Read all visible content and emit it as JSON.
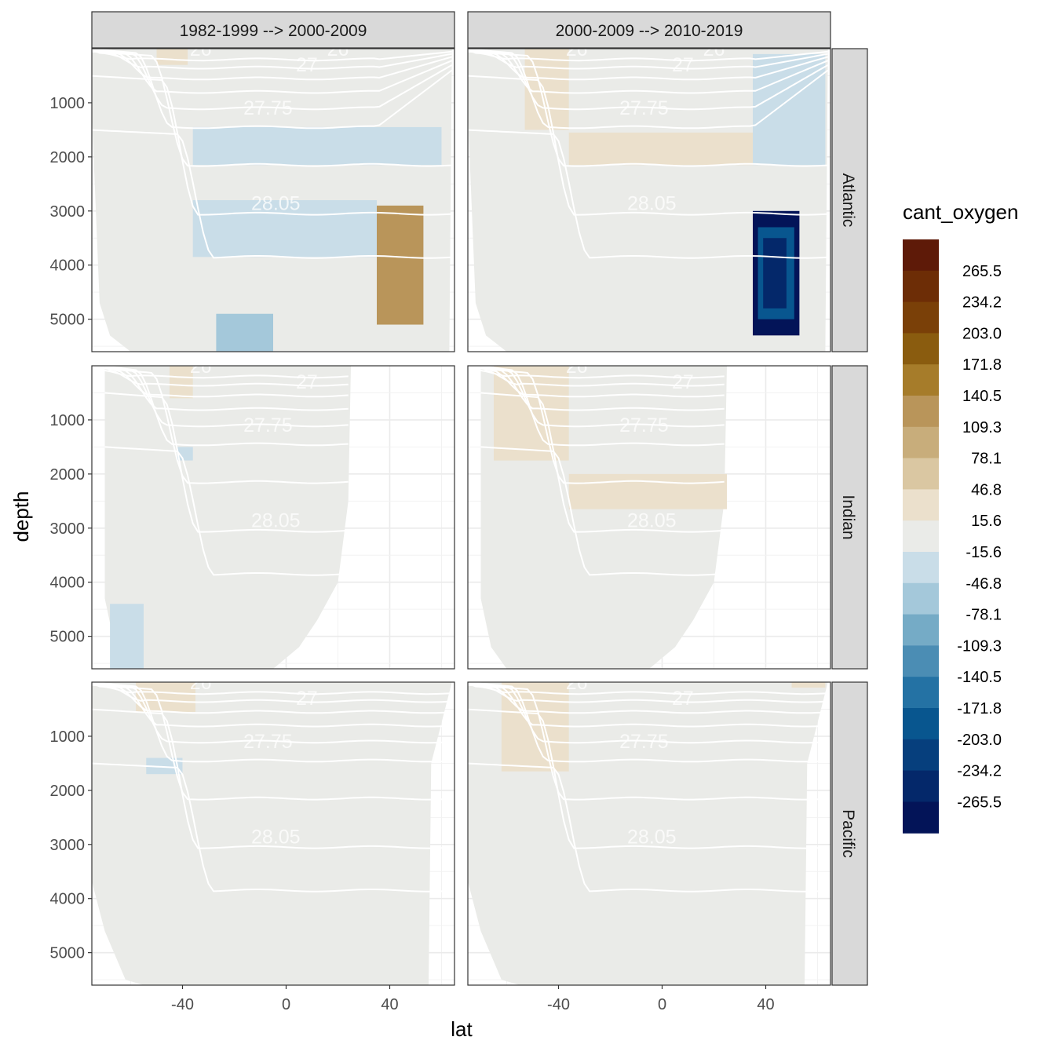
{
  "chart_data": {
    "type": "heatmap",
    "facet_columns": [
      "1982-1999 --> 2000-2009",
      "2000-2009 --> 2010-2019"
    ],
    "facet_rows": [
      "Atlantic",
      "Indian",
      "Pacific"
    ],
    "xlabel": "lat",
    "ylabel": "depth",
    "xlim": [
      -75,
      65
    ],
    "ylim": [
      5600,
      0
    ],
    "x_ticks": [
      -40,
      0,
      40
    ],
    "x_tick_labels": [
      "-40",
      "0",
      "40"
    ],
    "y_ticks": [
      1000,
      2000,
      3000,
      4000,
      5000
    ],
    "y_tick_labels": [
      "1000",
      "2000",
      "3000",
      "4000",
      "5000"
    ],
    "grid": true,
    "legend": {
      "title": "cant_oxygen",
      "position": "right",
      "breaks": [
        "265.5",
        "234.2",
        "203.0",
        "171.8",
        "140.5",
        "109.3",
        "78.1",
        "46.8",
        "15.6",
        "-15.6",
        "-46.8",
        "-78.1",
        "-109.3",
        "-140.5",
        "-171.8",
        "-203.0",
        "-234.2",
        "-265.5"
      ],
      "colors": [
        "#5e1a08",
        "#6d2d06",
        "#7a4008",
        "#8a5c0f",
        "#a67c2a",
        "#b9955a",
        "#c8ad7b",
        "#dac7a2",
        "#ebe0cc",
        "#eaebe8",
        "#c9dde8",
        "#a4c8da",
        "#75abc6",
        "#4b8db4",
        "#2472a4",
        "#08568f",
        "#063f7d",
        "#04286a",
        "#031458"
      ]
    },
    "isopycnal_labels": [
      "26",
      "27",
      "27.75",
      "28.05"
    ],
    "background_color": "#eaebe8",
    "contour_color": "#ffffff",
    "panels": [
      {
        "row": "Atlantic",
        "column": "1982-1999 --> 2000-2009",
        "contour_labels": [
          "26",
          "26",
          "27",
          "27.75",
          "28.05"
        ],
        "anomalies": [
          {
            "sign": "positive",
            "class": "15.6 to 46.8",
            "lat_range": [
              -50,
              -38
            ],
            "depth_range": [
              0,
              300
            ]
          },
          {
            "sign": "negative",
            "class": "-46.8 to -15.6",
            "lat_range": [
              -36,
              60
            ],
            "depth_range": [
              1450,
              2150
            ]
          },
          {
            "sign": "negative",
            "class": "-46.8 to -15.6",
            "lat_range": [
              -36,
              35
            ],
            "depth_range": [
              2800,
              3850
            ]
          },
          {
            "sign": "positive",
            "class": "78.1 to 109.3",
            "lat_range": [
              35,
              53
            ],
            "depth_range": [
              2900,
              5100
            ]
          },
          {
            "sign": "negative",
            "class": "-78.1 to -46.8",
            "lat_range": [
              -27,
              -5
            ],
            "depth_range": [
              4900,
              5600
            ]
          }
        ]
      },
      {
        "row": "Atlantic",
        "column": "2000-2009 --> 2010-2019",
        "contour_labels": [
          "26",
          "26",
          "27",
          "27.75",
          "28.05"
        ],
        "anomalies": [
          {
            "sign": "positive",
            "class": "15.6 to 46.8",
            "lat_range": [
              -53,
              -36
            ],
            "depth_range": [
              0,
              1500
            ]
          },
          {
            "sign": "positive",
            "class": "15.6 to 46.8",
            "lat_range": [
              -36,
              35
            ],
            "depth_range": [
              1550,
              2150
            ]
          },
          {
            "sign": "negative",
            "class": "-46.8 to -15.6",
            "lat_range": [
              35,
              63
            ],
            "depth_range": [
              100,
              2150
            ]
          },
          {
            "sign": "negative",
            "class": "below -265.5",
            "lat_range": [
              35,
              53
            ],
            "depth_range": [
              3000,
              5300
            ]
          }
        ]
      },
      {
        "row": "Indian",
        "column": "1982-1999 --> 2000-2009",
        "contour_labels": [
          "26",
          "27",
          "27.75",
          "28.05"
        ],
        "anomalies": [
          {
            "sign": "positive",
            "class": "15.6 to 46.8",
            "lat_range": [
              -45,
              -36
            ],
            "depth_range": [
              0,
              600
            ]
          },
          {
            "sign": "negative",
            "class": "-46.8 to -15.6",
            "lat_range": [
              -42,
              -36
            ],
            "depth_range": [
              1500,
              1750
            ]
          },
          {
            "sign": "negative",
            "class": "-46.8 to -15.6",
            "lat_range": [
              -68,
              -55
            ],
            "depth_range": [
              4400,
              5600
            ]
          }
        ]
      },
      {
        "row": "Indian",
        "column": "2000-2009 --> 2010-2019",
        "contour_labels": [
          "26",
          "27",
          "27.75",
          "28.05"
        ],
        "anomalies": [
          {
            "sign": "positive",
            "class": "15.6 to 46.8",
            "lat_range": [
              -65,
              -36
            ],
            "depth_range": [
              0,
              1750
            ]
          },
          {
            "sign": "positive",
            "class": "15.6 to 46.8",
            "lat_range": [
              -36,
              25
            ],
            "depth_range": [
              2000,
              2650
            ]
          }
        ]
      },
      {
        "row": "Pacific",
        "column": "1982-1999 --> 2000-2009",
        "contour_labels": [
          "26",
          "27",
          "27.75",
          "28.05"
        ],
        "anomalies": [
          {
            "sign": "positive",
            "class": "15.6 to 46.8",
            "lat_range": [
              -58,
              -35
            ],
            "depth_range": [
              0,
              550
            ]
          },
          {
            "sign": "negative",
            "class": "-46.8 to -15.6",
            "lat_range": [
              -54,
              -40
            ],
            "depth_range": [
              1400,
              1700
            ]
          }
        ]
      },
      {
        "row": "Pacific",
        "column": "2000-2009 --> 2010-2019",
        "contour_labels": [
          "26",
          "27",
          "27.75",
          "28.05"
        ],
        "anomalies": [
          {
            "sign": "positive",
            "class": "15.6 to 46.8",
            "lat_range": [
              -62,
              -36
            ],
            "depth_range": [
              0,
              1650
            ]
          },
          {
            "sign": "positive",
            "class": "15.6 to 46.8",
            "lat_range": [
              -50,
              -36
            ],
            "depth_range": [
              0,
              120
            ]
          },
          {
            "sign": "positive",
            "class": "15.6 to 46.8",
            "lat_range": [
              50,
              63
            ],
            "depth_range": [
              0,
              100
            ]
          }
        ]
      }
    ]
  }
}
